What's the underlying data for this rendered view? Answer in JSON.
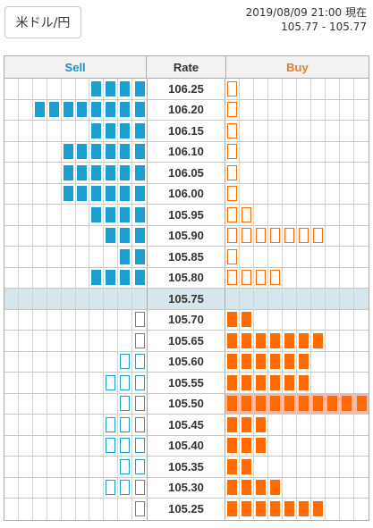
{
  "pair_button": "米ドル/円",
  "timestamp": "2019/08/09 21:00 現在",
  "range": "105.77 - 105.77",
  "headers": {
    "sell": "Sell",
    "rate": "Rate",
    "buy": "Buy"
  },
  "colors": {
    "sell": "#1b9ed0",
    "buy": "#ff6a00",
    "current_row": "#d5e6ec",
    "highlight": "#f5b9a8"
  },
  "rows": [
    {
      "rate": "106.25",
      "sell_filled": 4,
      "sell_outline": 0,
      "buy_filled": 0,
      "buy_outline": 1
    },
    {
      "rate": "106.20",
      "sell_filled": 8,
      "sell_outline": 0,
      "buy_filled": 0,
      "buy_outline": 1
    },
    {
      "rate": "106.15",
      "sell_filled": 4,
      "sell_outline": 0,
      "buy_filled": 0,
      "buy_outline": 1
    },
    {
      "rate": "106.10",
      "sell_filled": 6,
      "sell_outline": 0,
      "buy_filled": 0,
      "buy_outline": 1
    },
    {
      "rate": "106.05",
      "sell_filled": 6,
      "sell_outline": 0,
      "buy_filled": 0,
      "buy_outline": 1
    },
    {
      "rate": "106.00",
      "sell_filled": 6,
      "sell_outline": 0,
      "buy_filled": 0,
      "buy_outline": 1
    },
    {
      "rate": "105.95",
      "sell_filled": 4,
      "sell_outline": 0,
      "buy_filled": 0,
      "buy_outline": 2
    },
    {
      "rate": "105.90",
      "sell_filled": 3,
      "sell_outline": 0,
      "buy_filled": 0,
      "buy_outline": 7
    },
    {
      "rate": "105.85",
      "sell_filled": 2,
      "sell_outline": 0,
      "buy_filled": 0,
      "buy_outline": 1
    },
    {
      "rate": "105.80",
      "sell_filled": 4,
      "sell_outline": 0,
      "buy_filled": 0,
      "buy_outline": 4
    },
    {
      "rate": "105.75",
      "sell_filled": 0,
      "sell_outline": 0,
      "buy_filled": 0,
      "buy_outline": 0,
      "current": true
    },
    {
      "rate": "105.70",
      "sell_filled": 0,
      "sell_outline": 1,
      "buy_filled": 2,
      "buy_outline": 0
    },
    {
      "rate": "105.65",
      "sell_filled": 0,
      "sell_outline": 1,
      "buy_filled": 7,
      "buy_outline": 0
    },
    {
      "rate": "105.60",
      "sell_filled": 0,
      "sell_outline": 2,
      "buy_filled": 6,
      "buy_outline": 0
    },
    {
      "rate": "105.55",
      "sell_filled": 0,
      "sell_outline": 3,
      "buy_filled": 6,
      "buy_outline": 0
    },
    {
      "rate": "105.50",
      "sell_filled": 0,
      "sell_outline": 2,
      "buy_filled": 10,
      "buy_outline": 0,
      "highlight": true
    },
    {
      "rate": "105.45",
      "sell_filled": 0,
      "sell_outline": 3,
      "buy_filled": 3,
      "buy_outline": 0
    },
    {
      "rate": "105.40",
      "sell_filled": 0,
      "sell_outline": 3,
      "buy_filled": 3,
      "buy_outline": 0
    },
    {
      "rate": "105.35",
      "sell_filled": 0,
      "sell_outline": 2,
      "buy_filled": 2,
      "buy_outline": 0
    },
    {
      "rate": "105.30",
      "sell_filled": 0,
      "sell_outline": 3,
      "buy_filled": 4,
      "buy_outline": 0
    },
    {
      "rate": "105.25",
      "sell_filled": 0,
      "sell_outline": 1,
      "buy_filled": 7,
      "buy_outline": 0
    }
  ]
}
